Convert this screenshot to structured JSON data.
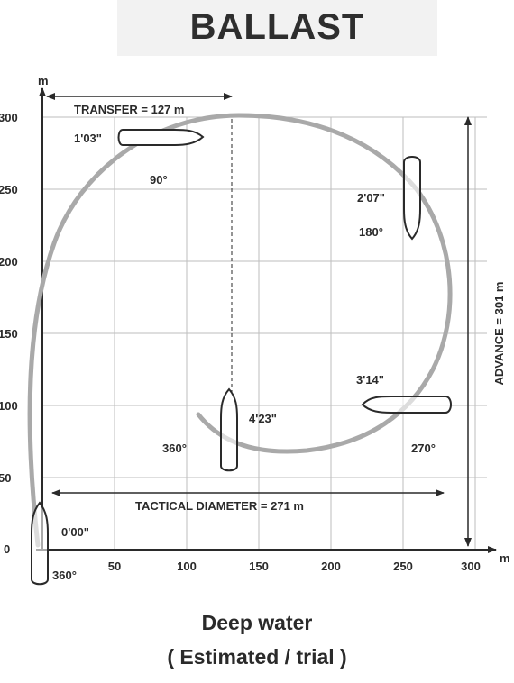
{
  "title": "BALLAST",
  "axis": {
    "x_unit": "m",
    "y_unit": "m",
    "x_ticks": [
      "50",
      "100",
      "150",
      "200",
      "250",
      "300"
    ],
    "y_ticks": [
      "300",
      "250",
      "200",
      "150",
      "100",
      "50",
      "0"
    ]
  },
  "dimensions": {
    "transfer": "TRANSFER = 127 m",
    "advance": "ADVANCE = 301 m",
    "tactical_diameter": "TACTICAL DIAMETER = 271 m"
  },
  "time_labels": [
    "0'00\"",
    "1'03\"",
    "2'07\"",
    "3'14\"",
    "4'23\""
  ],
  "heading_labels": [
    "360°",
    "90°",
    "180°",
    "270°",
    "360°"
  ],
  "footer": {
    "line1": "Deep  water",
    "line2": "( Estimated / trial )"
  },
  "colors": {
    "path": "#a9a9a9",
    "ink": "#2a2a2a",
    "grid": "#bdbdbd"
  }
}
